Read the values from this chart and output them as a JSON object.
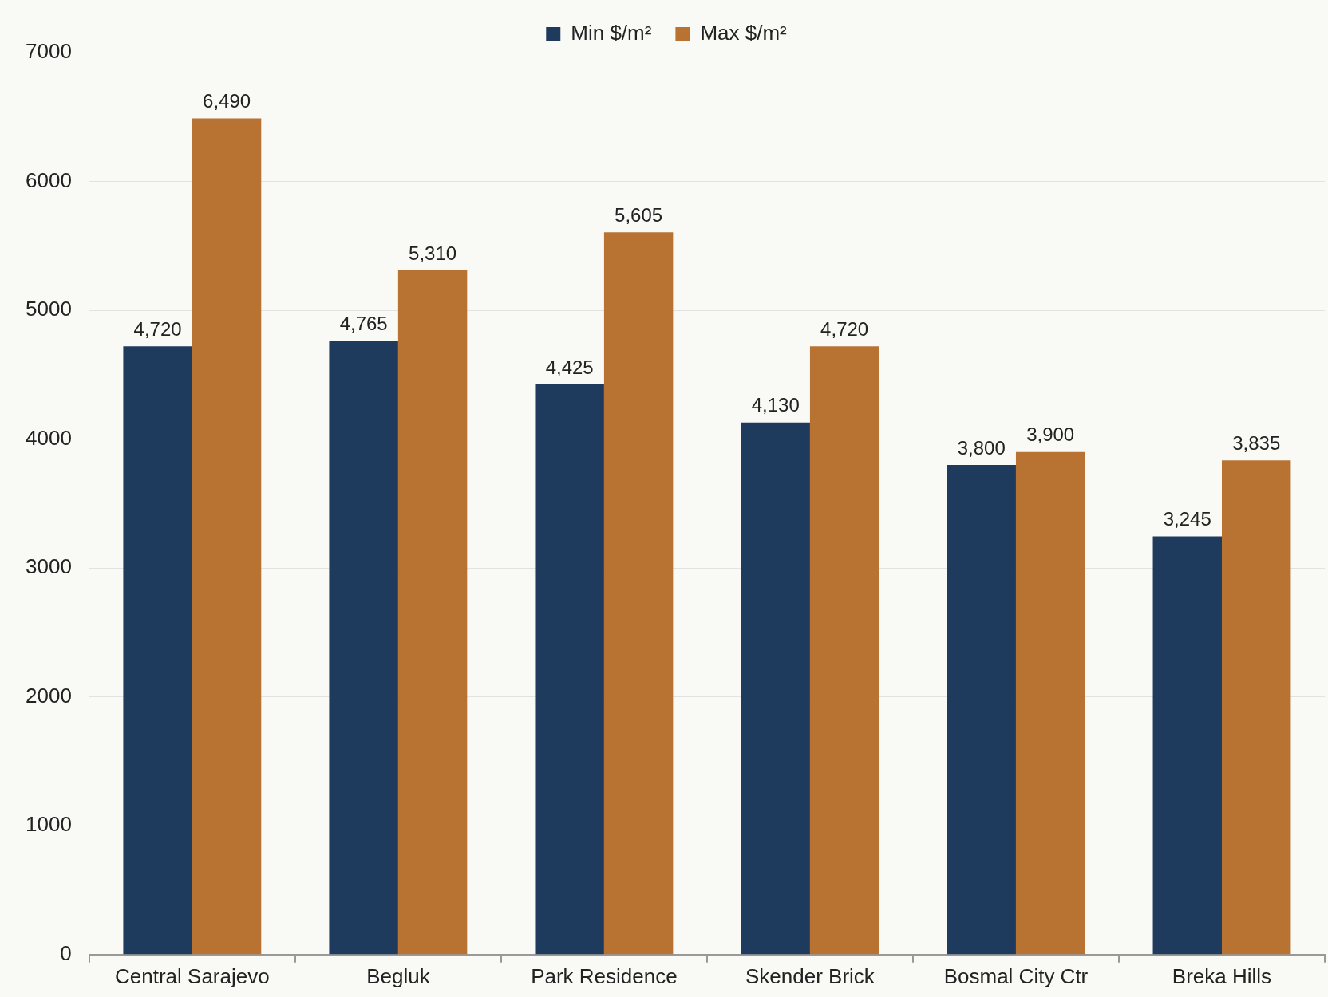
{
  "chart_data": {
    "type": "bar",
    "categories": [
      "Central Sarajevo",
      "Begluk",
      "Park Residence",
      "Skender Brick",
      "Bosmal City Ctr",
      "Breka Hills"
    ],
    "series": [
      {
        "name": "Min $/m²",
        "color": "#1e3a5c",
        "values": [
          4720,
          4765,
          4425,
          4130,
          3800,
          3245
        ],
        "value_labels": [
          "4,720",
          "4,765",
          "4,425",
          "4,130",
          "3,800",
          "3,245"
        ]
      },
      {
        "name": "Max $/m²",
        "color": "#b87333",
        "values": [
          6490,
          5310,
          5605,
          4720,
          3900,
          3835
        ],
        "value_labels": [
          "6,490",
          "5,310",
          "5,605",
          "4,720",
          "3,900",
          "3,835"
        ]
      }
    ],
    "ylim": [
      0,
      7000
    ],
    "yticks": [
      0,
      1000,
      2000,
      3000,
      4000,
      5000,
      6000,
      7000
    ],
    "grid": "y",
    "legend": "top"
  }
}
